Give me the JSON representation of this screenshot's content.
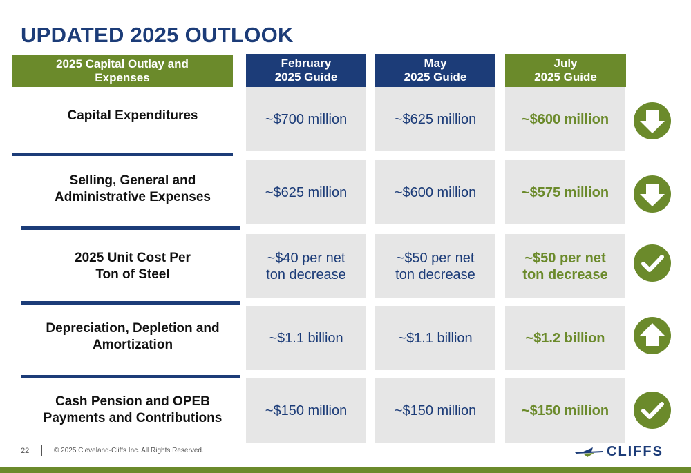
{
  "title": "UPDATED 2025 OUTLOOK",
  "headers": {
    "label": "2025 Capital Outlay and\nExpenses",
    "february": "February\n2025 Guide",
    "may": "May\n2025 Guide",
    "july": "July\n2025 Guide"
  },
  "rows": [
    {
      "label": "Capital Expenditures",
      "february": "~$700 million",
      "may": "~$625 million",
      "july": "~$600 million",
      "indicator": "down-arrow-icon"
    },
    {
      "label": "Selling, General and\nAdministrative Expenses",
      "february": "~$625 million",
      "may": "~$600 million",
      "july": "~$575 million",
      "indicator": "down-arrow-icon"
    },
    {
      "label": "2025 Unit Cost Per\nTon of Steel",
      "february": "~$40 per net\nton decrease",
      "may": "~$50 per net\nton decrease",
      "july": "~$50 per net\nton decrease",
      "indicator": "checkmark-icon"
    },
    {
      "label": "Depreciation, Depletion and\nAmortization",
      "february": "~$1.1 billion",
      "may": "~$1.1 billion",
      "july": "~$1.2 billion",
      "indicator": "up-arrow-icon"
    },
    {
      "label": "Cash Pension and OPEB\nPayments and Contributions",
      "february": "~$150 million",
      "may": "~$150 million",
      "july": "~$150 million",
      "indicator": "checkmark-icon"
    }
  ],
  "footer": {
    "page_number": "22",
    "copyright": "© 2025 Cleveland-Cliffs Inc. All Rights Reserved.",
    "logo_text": "CLIFFS"
  },
  "colors": {
    "navy": "#1c3c78",
    "olive": "#6b8a2b",
    "cell_gray": "#e6e6e6"
  }
}
